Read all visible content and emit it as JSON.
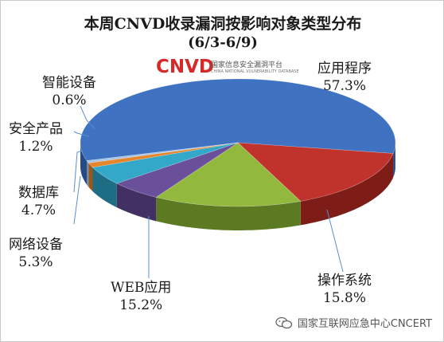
{
  "chart_data": {
    "type": "pie",
    "title": "本周CNVD收录漏洞按影响对象类型分布",
    "subtitle": "(6/3-6/9)",
    "slices": [
      {
        "label": "应用程序",
        "value": 57.3,
        "value_label": "57.3%",
        "color": "#3f72c0",
        "side": "#254a85"
      },
      {
        "label": "操作系统",
        "value": 15.8,
        "value_label": "15.8%",
        "color": "#c0332c",
        "side": "#7e1c18"
      },
      {
        "label": "WEB应用",
        "value": 15.2,
        "value_label": "15.2%",
        "color": "#92b83e",
        "side": "#5b7a22"
      },
      {
        "label": "网络设备",
        "value": 5.3,
        "value_label": "5.3%",
        "color": "#6a4f9a",
        "side": "#433063"
      },
      {
        "label": "数据库",
        "value": 4.7,
        "value_label": "4.7%",
        "color": "#33a8c8",
        "side": "#1d6d84"
      },
      {
        "label": "安全产品",
        "value": 1.2,
        "value_label": "1.2%",
        "color": "#e5862d",
        "side": "#9c5617"
      },
      {
        "label": "智能设备",
        "value": 0.6,
        "value_label": "0.6%",
        "color": "#a8c4e6",
        "side": "#6f8bad"
      }
    ]
  },
  "logo": {
    "name": "CNVD",
    "line1": "国家信息安全漏洞平台",
    "line2": "CHINA NATIONAL VULNERABILITY DATABASE"
  },
  "watermark": {
    "text": "国家互联网应急中心CNCERT",
    "icon": "wechat-icon"
  }
}
